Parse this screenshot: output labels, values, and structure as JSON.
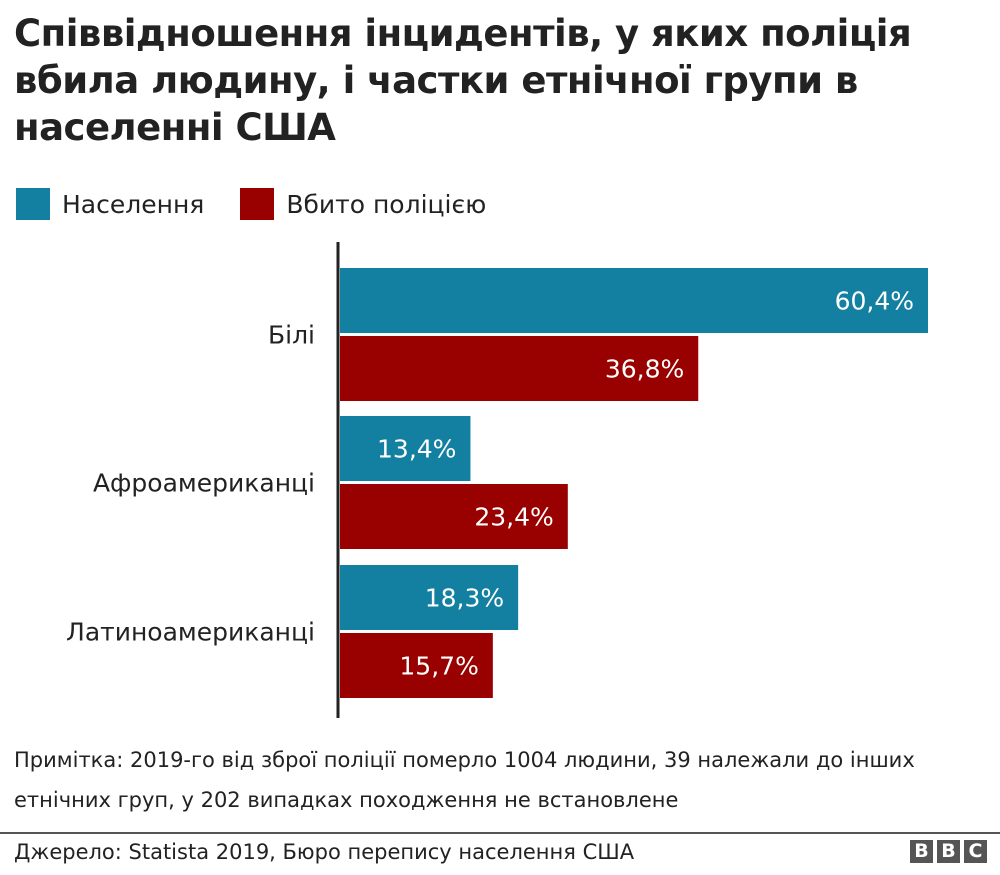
{
  "title": "Співвідношення інцидентів, у яких поліція вбила людину, і частки етнічної групи в населенні США",
  "legend": [
    {
      "label": "Населення",
      "color": "#1380a1"
    },
    {
      "label": "Вбито поліцією",
      "color": "#990000"
    }
  ],
  "chart_data": {
    "type": "bar",
    "orientation": "horizontal",
    "title": "Співвідношення інцидентів, у яких поліція вбила людину, і частки етнічної групи в населенні США",
    "categories": [
      "Білі",
      "Афроамериканці",
      "Латиноамериканці"
    ],
    "series": [
      {
        "name": "Населення",
        "color": "#1380a1",
        "values": [
          60.4,
          13.4,
          18.3
        ],
        "labels": [
          "60,4%",
          "13,4%",
          "18,3%"
        ]
      },
      {
        "name": "Вбито поліцією",
        "color": "#990000",
        "values": [
          36.8,
          23.4,
          15.7
        ],
        "labels": [
          "36,8%",
          "23,4%",
          "15,7%"
        ]
      }
    ],
    "xlim": [
      0,
      60.4
    ],
    "grid": false,
    "legend_position": "top-left"
  },
  "note": "Примітка: 2019-го від зброї поліції померло 1004 людини, 39 належали до інших етнічних груп, у 202 випадках походження не встановлене",
  "source": "Джерело: Statista 2019, Бюро перепису населення США",
  "logo": "BBC"
}
